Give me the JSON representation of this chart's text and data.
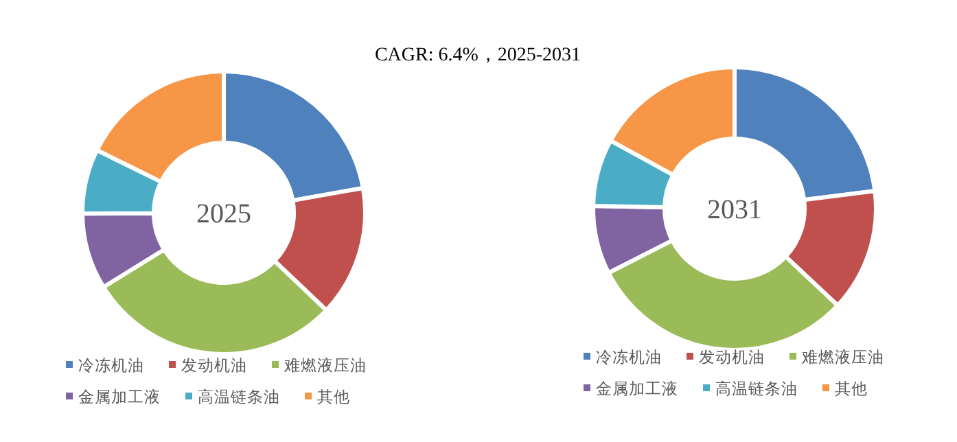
{
  "chart_data": [
    {
      "type": "donut",
      "title": "CAGR:  6.4%，2025-2031",
      "annotations": [
        "2025"
      ],
      "legend": "bottom",
      "categories": [
        "冷冻机油",
        "发动机油",
        "难燃液压油",
        "金属加工液",
        "高温链条油",
        "其他"
      ],
      "values": [
        22.2,
        14.9,
        29.1,
        8.7,
        7.4,
        17.7
      ],
      "colors": [
        "#4f81bd",
        "#c0504d",
        "#9bbb59",
        "#8064a2",
        "#4bacc6",
        "#f79646"
      ]
    },
    {
      "type": "donut",
      "annotations": [
        "2031"
      ],
      "legend": "bottom",
      "categories": [
        "冷冻机油",
        "发动机油",
        "难燃液压油",
        "金属加工液",
        "高温链条油",
        "其他"
      ],
      "values": [
        23,
        14,
        30.5,
        7.8,
        7.7,
        17
      ],
      "colors": [
        "#4f81bd",
        "#c0504d",
        "#9bbb59",
        "#8064a2",
        "#4bacc6",
        "#f79646"
      ]
    }
  ]
}
